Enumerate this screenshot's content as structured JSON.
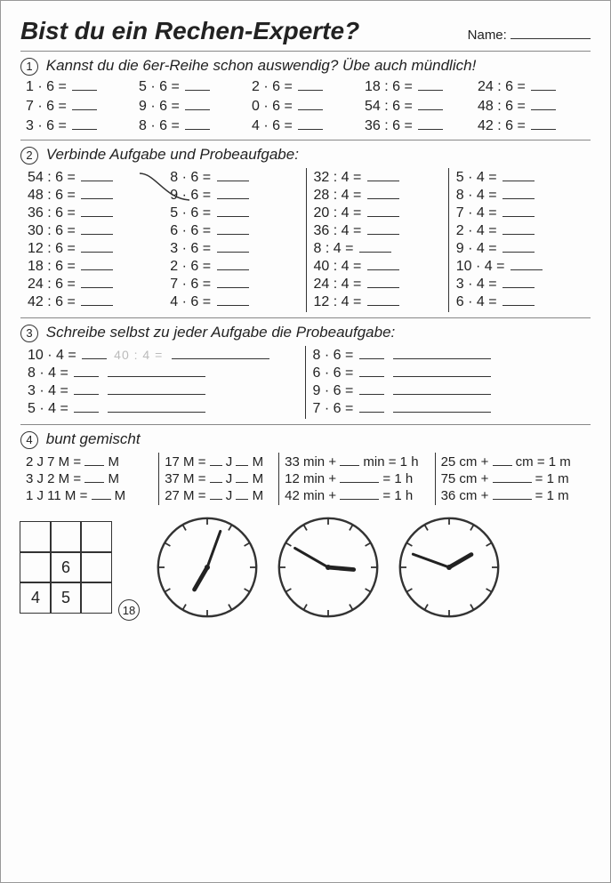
{
  "title": "Bist du ein Rechen-Experte?",
  "name_label": "Name:",
  "sections": {
    "s1": {
      "num": "1",
      "text": "Kannst du die 6er-Reihe schon auswendig? Übe auch mündlich!",
      "rows": [
        [
          "1 · 6 =",
          "5 · 6 =",
          "2 · 6 =",
          "18 : 6 =",
          "24 : 6 ="
        ],
        [
          "7 · 6 =",
          "9 · 6 =",
          "0 · 6 =",
          "54 : 6 =",
          "48 : 6 ="
        ],
        [
          "3 · 6 =",
          "8 · 6 =",
          "4 · 6 =",
          "36 : 6 =",
          "42 : 6 ="
        ]
      ]
    },
    "s2": {
      "num": "2",
      "text": "Verbinde Aufgabe und Probeaufgabe:",
      "cols": [
        [
          "54 : 6 =",
          "48 : 6 =",
          "36 : 6 =",
          "30 : 6 =",
          "12 : 6 =",
          "18 : 6 =",
          "24 : 6 =",
          "42 : 6 ="
        ],
        [
          "8 · 6 =",
          "9 · 6 =",
          "5 · 6 =",
          "6 · 6 =",
          "3 · 6 =",
          "2 · 6 =",
          "7 · 6 =",
          "4 · 6 ="
        ],
        [
          "32 : 4 =",
          "28 : 4 =",
          "20 : 4 =",
          "36 : 4 =",
          "8 : 4 =",
          "40 : 4 =",
          "24 : 4 =",
          "12 : 4 ="
        ],
        [
          "5 · 4 =",
          "8 · 4 =",
          "7 · 4 =",
          "2 · 4 =",
          "9 · 4 =",
          "10 · 4 =",
          "3 · 4 =",
          "6 · 4 ="
        ]
      ]
    },
    "s3": {
      "num": "3",
      "text": "Schreibe selbst zu jeder Aufgabe die Probeaufgabe:",
      "left": [
        "10 · 4 =",
        "8 · 4 =",
        "3 · 4 =",
        "5 · 4 ="
      ],
      "left_hint": "40 : 4 =",
      "right": [
        "8 · 6 =",
        "6 · 6 =",
        "9 · 6 =",
        "7 · 6 ="
      ]
    },
    "s4": {
      "num": "4",
      "text": "bunt gemischt",
      "c1": [
        "2 J 7 M = ___ M",
        "3 J 2 M = ___ M",
        "1 J 11 M = ___ M"
      ],
      "c2": [
        "17 M = __ J __ M",
        "37 M = __ J __ M",
        "27 M = __ J __ M"
      ],
      "c3": [
        "33 min + ___ min = 1 h",
        "12 min + ______ = 1 h",
        "42 min + ______ = 1 h"
      ],
      "c4": [
        "25 cm + ___ cm = 1 m",
        "75 cm + ______ = 1 m",
        "36 cm + ______ = 1 m"
      ]
    }
  },
  "square": {
    "c5": "6",
    "c7": "4",
    "c8": "5"
  },
  "page_number": "18",
  "clocks": [
    {
      "hour_angle": 210,
      "min_angle": 20
    },
    {
      "hour_angle": 95,
      "min_angle": 300
    },
    {
      "hour_angle": 60,
      "min_angle": 290
    }
  ],
  "colors": {
    "ink": "#222",
    "line": "#888"
  }
}
